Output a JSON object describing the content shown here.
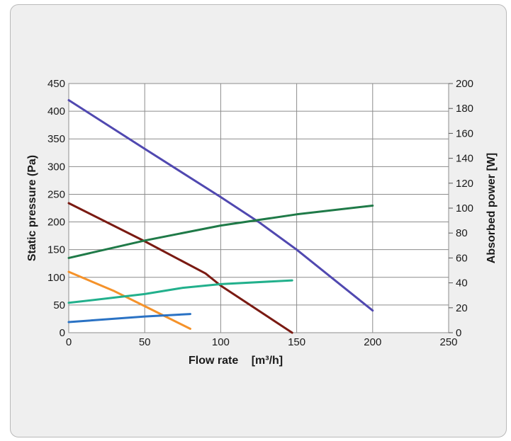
{
  "chart_data": {
    "type": "line",
    "title": "",
    "xlabel": "Flow rate",
    "xlabel_unit": "[m³/h]",
    "ylabel": "Static pressure (Pa)",
    "y2label": "Absorbed power [W]",
    "xlim": [
      0,
      250
    ],
    "ylim": [
      0,
      450
    ],
    "y2lim": [
      0,
      200
    ],
    "x_ticks": [
      0,
      50,
      100,
      150,
      200,
      250
    ],
    "y_ticks": [
      0,
      50,
      100,
      150,
      200,
      250,
      300,
      350,
      400,
      450
    ],
    "y2_ticks": [
      0,
      20,
      40,
      60,
      80,
      100,
      120,
      140,
      160,
      180,
      200
    ],
    "grid": true,
    "legend": "none",
    "series": [
      {
        "axis": "left",
        "color": "#5048b0",
        "points": [
          [
            0,
            420
          ],
          [
            50,
            332
          ],
          [
            100,
            245
          ],
          [
            125,
            200
          ],
          [
            150,
            150
          ],
          [
            200,
            40
          ]
        ]
      },
      {
        "axis": "left",
        "color": "#7a1a12",
        "points": [
          [
            0,
            234
          ],
          [
            50,
            165
          ],
          [
            90,
            107
          ],
          [
            100,
            85
          ],
          [
            147,
            0
          ]
        ]
      },
      {
        "axis": "left",
        "color": "#f5922a",
        "points": [
          [
            0,
            110
          ],
          [
            30,
            75
          ],
          [
            50,
            48
          ],
          [
            80,
            7
          ]
        ]
      },
      {
        "axis": "right",
        "color": "#1f7a48",
        "points": [
          [
            0,
            60
          ],
          [
            50,
            74
          ],
          [
            100,
            86
          ],
          [
            150,
            95
          ],
          [
            200,
            102
          ]
        ]
      },
      {
        "axis": "right",
        "color": "#22b08c",
        "points": [
          [
            0,
            24
          ],
          [
            50,
            31
          ],
          [
            75,
            36
          ],
          [
            100,
            39
          ],
          [
            147,
            42
          ]
        ]
      },
      {
        "axis": "right",
        "color": "#2a72c4",
        "points": [
          [
            0,
            8.5
          ],
          [
            50,
            13
          ],
          [
            80,
            15
          ]
        ]
      }
    ]
  }
}
